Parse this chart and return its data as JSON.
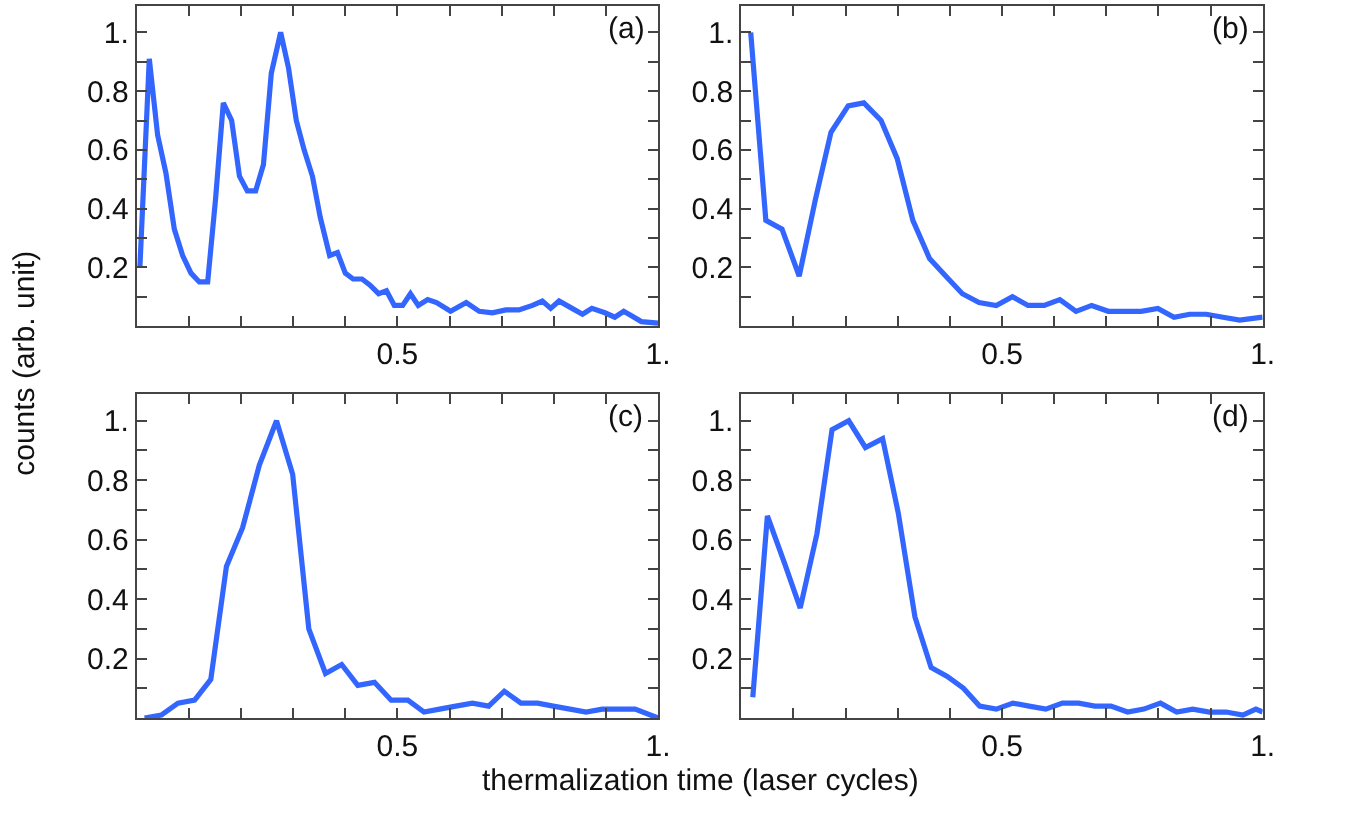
{
  "chart_data": [
    {
      "type": "line",
      "ylabel": "counts (arb. unit)",
      "annotations": [
        "(a)"
      ],
      "xlim": [
        0,
        1
      ],
      "ylim": [
        0,
        1.09
      ],
      "marker": "none",
      "line_style": "solid",
      "xticks": [
        {
          "value": 0.1,
          "label": null
        },
        {
          "value": 0.2,
          "label": null
        },
        {
          "value": 0.3,
          "label": null
        },
        {
          "value": 0.4,
          "label": null
        },
        {
          "value": 0.5,
          "label": "0.5"
        },
        {
          "value": 0.6,
          "label": null
        },
        {
          "value": 0.7,
          "label": null
        },
        {
          "value": 0.8,
          "label": null
        },
        {
          "value": 0.9,
          "label": null
        },
        {
          "value": 1,
          "label": "1."
        }
      ],
      "yticks": [
        {
          "value": 0.1,
          "label": null
        },
        0.2,
        {
          "value": 0.3,
          "label": null
        },
        0.4,
        {
          "value": 0.5,
          "label": null
        },
        0.6,
        {
          "value": 0.7,
          "label": null
        },
        0.8,
        {
          "value": 0.9,
          "label": null
        },
        {
          "value": 1,
          "label": "1."
        }
      ],
      "series": [
        {
          "color": "#3366ff",
          "x": [
            0.006,
            0.024,
            0.04,
            0.056,
            0.072,
            0.088,
            0.104,
            0.12,
            0.136,
            0.151,
            0.166,
            0.182,
            0.197,
            0.212,
            0.228,
            0.243,
            0.258,
            0.276,
            0.291,
            0.306,
            0.321,
            0.337,
            0.352,
            0.37,
            0.385,
            0.4,
            0.415,
            0.432,
            0.447,
            0.464,
            0.479,
            0.494,
            0.51,
            0.525,
            0.54,
            0.558,
            0.575,
            0.602,
            0.632,
            0.657,
            0.682,
            0.708,
            0.733,
            0.759,
            0.778,
            0.794,
            0.81,
            0.835,
            0.855,
            0.873,
            0.898,
            0.917,
            0.934,
            0.949,
            0.968,
            1.0
          ],
          "values": [
            0.2,
            0.91,
            0.65,
            0.52,
            0.33,
            0.24,
            0.18,
            0.15,
            0.15,
            0.43,
            0.76,
            0.7,
            0.51,
            0.46,
            0.46,
            0.55,
            0.86,
            1.0,
            0.88,
            0.7,
            0.6,
            0.51,
            0.37,
            0.24,
            0.25,
            0.18,
            0.16,
            0.16,
            0.14,
            0.11,
            0.12,
            0.07,
            0.07,
            0.11,
            0.07,
            0.09,
            0.08,
            0.05,
            0.08,
            0.05,
            0.045,
            0.055,
            0.055,
            0.07,
            0.085,
            0.06,
            0.085,
            0.06,
            0.04,
            0.06,
            0.045,
            0.03,
            0.05,
            0.035,
            0.015,
            0.01
          ]
        }
      ]
    },
    {
      "type": "line",
      "annotations": [
        "(b)"
      ],
      "xlim": [
        0,
        1
      ],
      "ylim": [
        0,
        1.09
      ],
      "marker": "none",
      "line_style": "solid",
      "xticks": [
        {
          "value": 0.1,
          "label": null
        },
        {
          "value": 0.2,
          "label": null
        },
        {
          "value": 0.3,
          "label": null
        },
        {
          "value": 0.4,
          "label": null
        },
        {
          "value": 0.5,
          "label": "0.5"
        },
        {
          "value": 0.6,
          "label": null
        },
        {
          "value": 0.7,
          "label": null
        },
        {
          "value": 0.8,
          "label": null
        },
        {
          "value": 0.9,
          "label": null
        },
        {
          "value": 1,
          "label": "1."
        }
      ],
      "yticks": [
        {
          "value": 0.1,
          "label": null
        },
        0.2,
        {
          "value": 0.3,
          "label": null
        },
        0.4,
        {
          "value": 0.5,
          "label": null
        },
        0.6,
        {
          "value": 0.7,
          "label": null
        },
        0.8,
        {
          "value": 0.9,
          "label": null
        },
        {
          "value": 1,
          "label": "1."
        }
      ],
      "series": [
        {
          "color": "#3366ff",
          "x": [
            0.018,
            0.047,
            0.078,
            0.111,
            0.142,
            0.172,
            0.205,
            0.235,
            0.268,
            0.299,
            0.329,
            0.361,
            0.392,
            0.424,
            0.456,
            0.489,
            0.52,
            0.55,
            0.581,
            0.611,
            0.642,
            0.672,
            0.704,
            0.736,
            0.767,
            0.799,
            0.83,
            0.86,
            0.892,
            0.924,
            0.956,
            1.0
          ],
          "values": [
            1.0,
            0.36,
            0.33,
            0.17,
            0.43,
            0.66,
            0.75,
            0.76,
            0.7,
            0.57,
            0.36,
            0.23,
            0.17,
            0.11,
            0.08,
            0.07,
            0.1,
            0.07,
            0.07,
            0.09,
            0.05,
            0.07,
            0.05,
            0.05,
            0.05,
            0.06,
            0.03,
            0.04,
            0.04,
            0.03,
            0.02,
            0.03
          ]
        }
      ]
    },
    {
      "type": "line",
      "xlabel": "thermalization time (laser cycles)",
      "annotations": [
        "(c)"
      ],
      "xlim": [
        0,
        1
      ],
      "ylim": [
        0,
        1.09
      ],
      "marker": "none",
      "line_style": "solid",
      "xticks": [
        {
          "value": 0.1,
          "label": null
        },
        {
          "value": 0.2,
          "label": null
        },
        {
          "value": 0.3,
          "label": null
        },
        {
          "value": 0.4,
          "label": null
        },
        {
          "value": 0.5,
          "label": "0.5"
        },
        {
          "value": 0.6,
          "label": null
        },
        {
          "value": 0.7,
          "label": null
        },
        {
          "value": 0.8,
          "label": null
        },
        {
          "value": 0.9,
          "label": null
        },
        {
          "value": 1,
          "label": "1."
        }
      ],
      "yticks": [
        {
          "value": 0.1,
          "label": null
        },
        0.2,
        {
          "value": 0.3,
          "label": null
        },
        0.4,
        {
          "value": 0.5,
          "label": null
        },
        0.6,
        {
          "value": 0.7,
          "label": null
        },
        0.8,
        {
          "value": 0.9,
          "label": null
        },
        {
          "value": 1,
          "label": "1."
        }
      ],
      "series": [
        {
          "color": "#3366ff",
          "x": [
            0.015,
            0.047,
            0.079,
            0.111,
            0.142,
            0.172,
            0.203,
            0.235,
            0.268,
            0.299,
            0.33,
            0.362,
            0.393,
            0.424,
            0.456,
            0.488,
            0.52,
            0.551,
            0.581,
            0.612,
            0.644,
            0.675,
            0.705,
            0.737,
            0.769,
            0.799,
            0.831,
            0.862,
            0.893,
            0.924,
            0.956,
            1.0
          ],
          "values": [
            0.0,
            0.01,
            0.05,
            0.06,
            0.13,
            0.51,
            0.64,
            0.85,
            1.0,
            0.82,
            0.3,
            0.15,
            0.18,
            0.11,
            0.12,
            0.06,
            0.06,
            0.02,
            0.03,
            0.04,
            0.05,
            0.04,
            0.09,
            0.05,
            0.05,
            0.04,
            0.03,
            0.02,
            0.03,
            0.03,
            0.03,
            0.0
          ]
        }
      ]
    },
    {
      "type": "line",
      "annotations": [
        "(d)"
      ],
      "xlim": [
        0,
        1
      ],
      "ylim": [
        0,
        1.09
      ],
      "marker": "none",
      "line_style": "solid",
      "xticks": [
        {
          "value": 0.1,
          "label": null
        },
        {
          "value": 0.2,
          "label": null
        },
        {
          "value": 0.3,
          "label": null
        },
        {
          "value": 0.4,
          "label": null
        },
        {
          "value": 0.5,
          "label": "0.5"
        },
        {
          "value": 0.6,
          "label": null
        },
        {
          "value": 0.7,
          "label": null
        },
        {
          "value": 0.8,
          "label": null
        },
        {
          "value": 0.9,
          "label": null
        },
        {
          "value": 1,
          "label": "1."
        }
      ],
      "yticks": [
        {
          "value": 0.1,
          "label": null
        },
        0.2,
        {
          "value": 0.3,
          "label": null
        },
        0.4,
        {
          "value": 0.5,
          "label": null
        },
        0.6,
        {
          "value": 0.7,
          "label": null
        },
        0.8,
        {
          "value": 0.9,
          "label": null
        },
        {
          "value": 1,
          "label": "1."
        }
      ],
      "series": [
        {
          "color": "#3366ff",
          "x": [
            0.022,
            0.05,
            0.083,
            0.113,
            0.145,
            0.174,
            0.206,
            0.238,
            0.271,
            0.301,
            0.333,
            0.364,
            0.395,
            0.426,
            0.457,
            0.489,
            0.521,
            0.552,
            0.584,
            0.616,
            0.647,
            0.678,
            0.709,
            0.741,
            0.772,
            0.804,
            0.835,
            0.866,
            0.898,
            0.93,
            0.962,
            0.987,
            1.0
          ],
          "values": [
            0.07,
            0.68,
            0.52,
            0.37,
            0.62,
            0.97,
            1.0,
            0.91,
            0.94,
            0.69,
            0.34,
            0.17,
            0.14,
            0.1,
            0.04,
            0.03,
            0.05,
            0.04,
            0.03,
            0.05,
            0.05,
            0.04,
            0.04,
            0.02,
            0.03,
            0.05,
            0.02,
            0.03,
            0.02,
            0.02,
            0.01,
            0.03,
            0.02
          ]
        }
      ]
    }
  ]
}
